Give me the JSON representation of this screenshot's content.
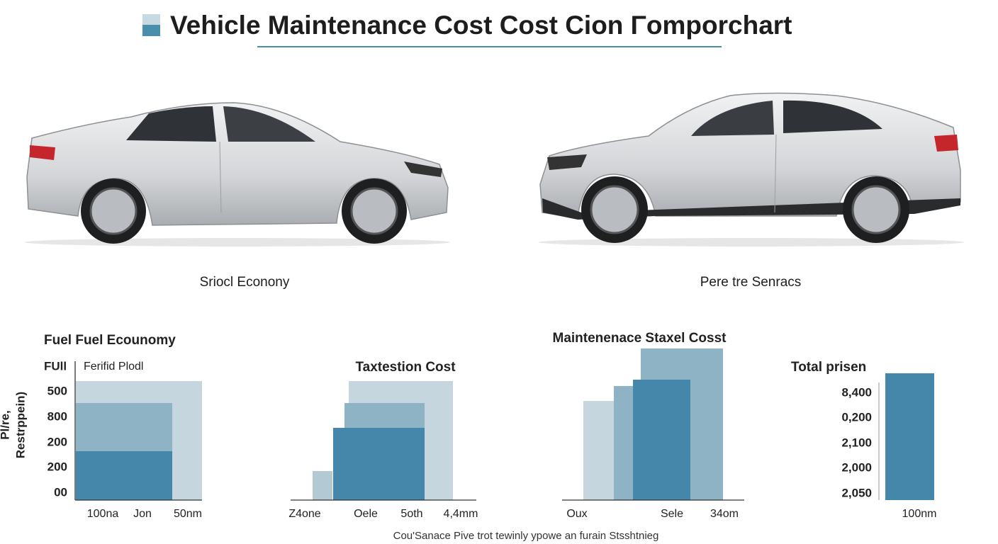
{
  "title": "Vehicle Maintenance Cost Cost Cion Γomporchart",
  "cars": [
    {
      "label": "Sriocl Econony"
    },
    {
      "label": "Pere tre Senracs"
    }
  ],
  "panels": [
    {
      "title": "Fuel Fuel Ecounomy",
      "axis_label": "FUll",
      "subtitle": "Ferifid Plodl",
      "y_axis_title": [
        "Pl/re,",
        "Restrppein)"
      ],
      "ticks": [
        "500",
        "800",
        "200",
        "200",
        "00"
      ],
      "x_labels": [
        "100na",
        "Jon",
        "50nm"
      ]
    },
    {
      "title": "Taxtestion Cost",
      "x_labels": [
        "Z4one",
        "Oele",
        "5oth",
        "4,4mm"
      ]
    },
    {
      "title": "Maintenenace Staxel Cosst",
      "x_labels": [
        "Oux",
        "Sele",
        "34om"
      ]
    },
    {
      "title": "Total prisen",
      "ticks": [
        "8,400",
        "0,200",
        "2,100",
        "2,000",
        "2,050"
      ],
      "x_labels": [
        "100nm"
      ]
    }
  ],
  "footer": "Cou'Sanace Pive trot tewinly ypowe an furain Stsshtnieg"
}
